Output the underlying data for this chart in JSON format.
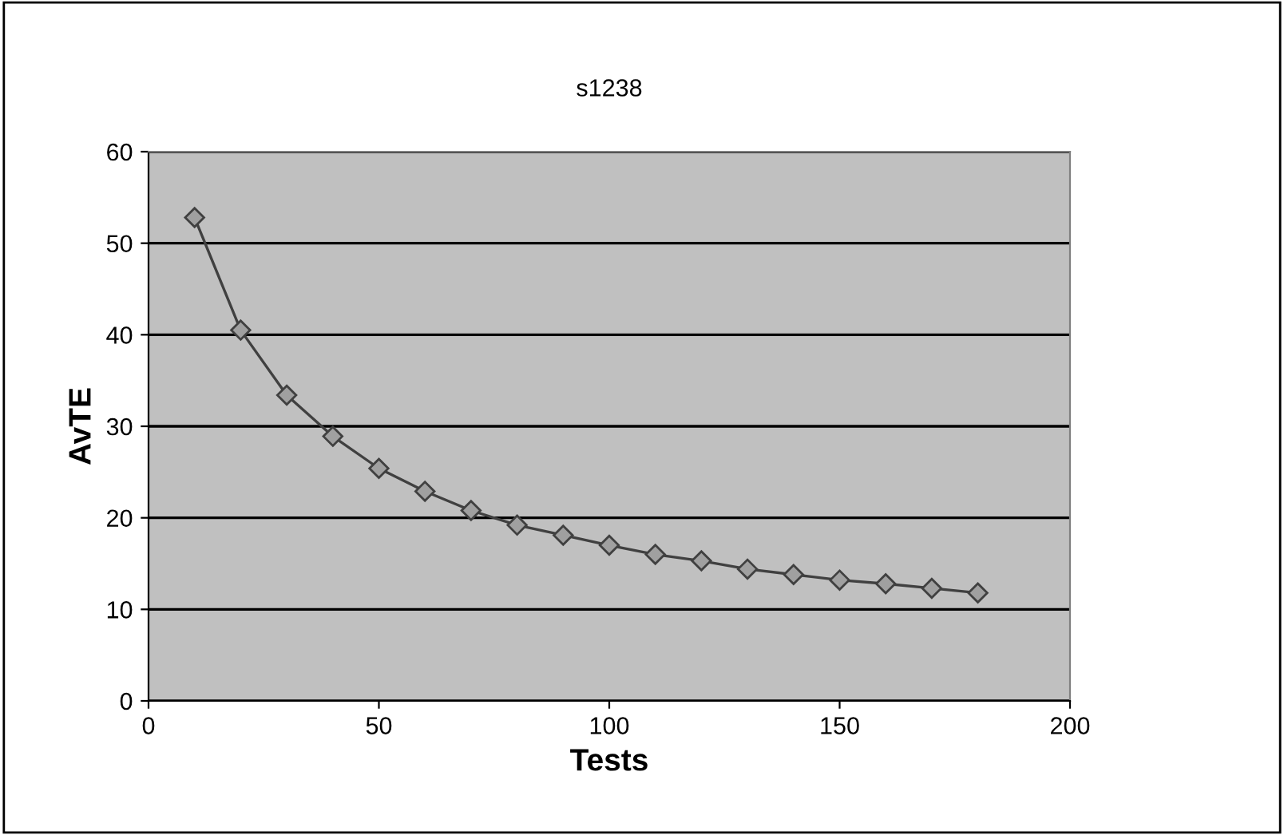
{
  "chart_data": {
    "type": "line",
    "title": "s1238",
    "xlabel": "Tests",
    "ylabel": "AvTE",
    "x": [
      10,
      20,
      30,
      40,
      50,
      60,
      70,
      80,
      90,
      100,
      110,
      120,
      130,
      140,
      150,
      160,
      170,
      180
    ],
    "series": [
      {
        "color": "#404040",
        "values": [
          52.8,
          40.5,
          33.4,
          28.9,
          25.4,
          22.9,
          20.8,
          19.2,
          18.1,
          17.0,
          16.0,
          15.3,
          14.4,
          13.8,
          13.2,
          12.8,
          12.3,
          11.8
        ]
      }
    ],
    "xlim": [
      0,
      200
    ],
    "xticks": [
      0,
      50,
      100,
      150,
      200
    ],
    "ylim": [
      0,
      60
    ],
    "yticks": [
      0,
      10,
      20,
      30,
      40,
      50,
      60
    ],
    "grid": "y",
    "marker": "diamond",
    "line_style": "solid",
    "legend": false
  }
}
